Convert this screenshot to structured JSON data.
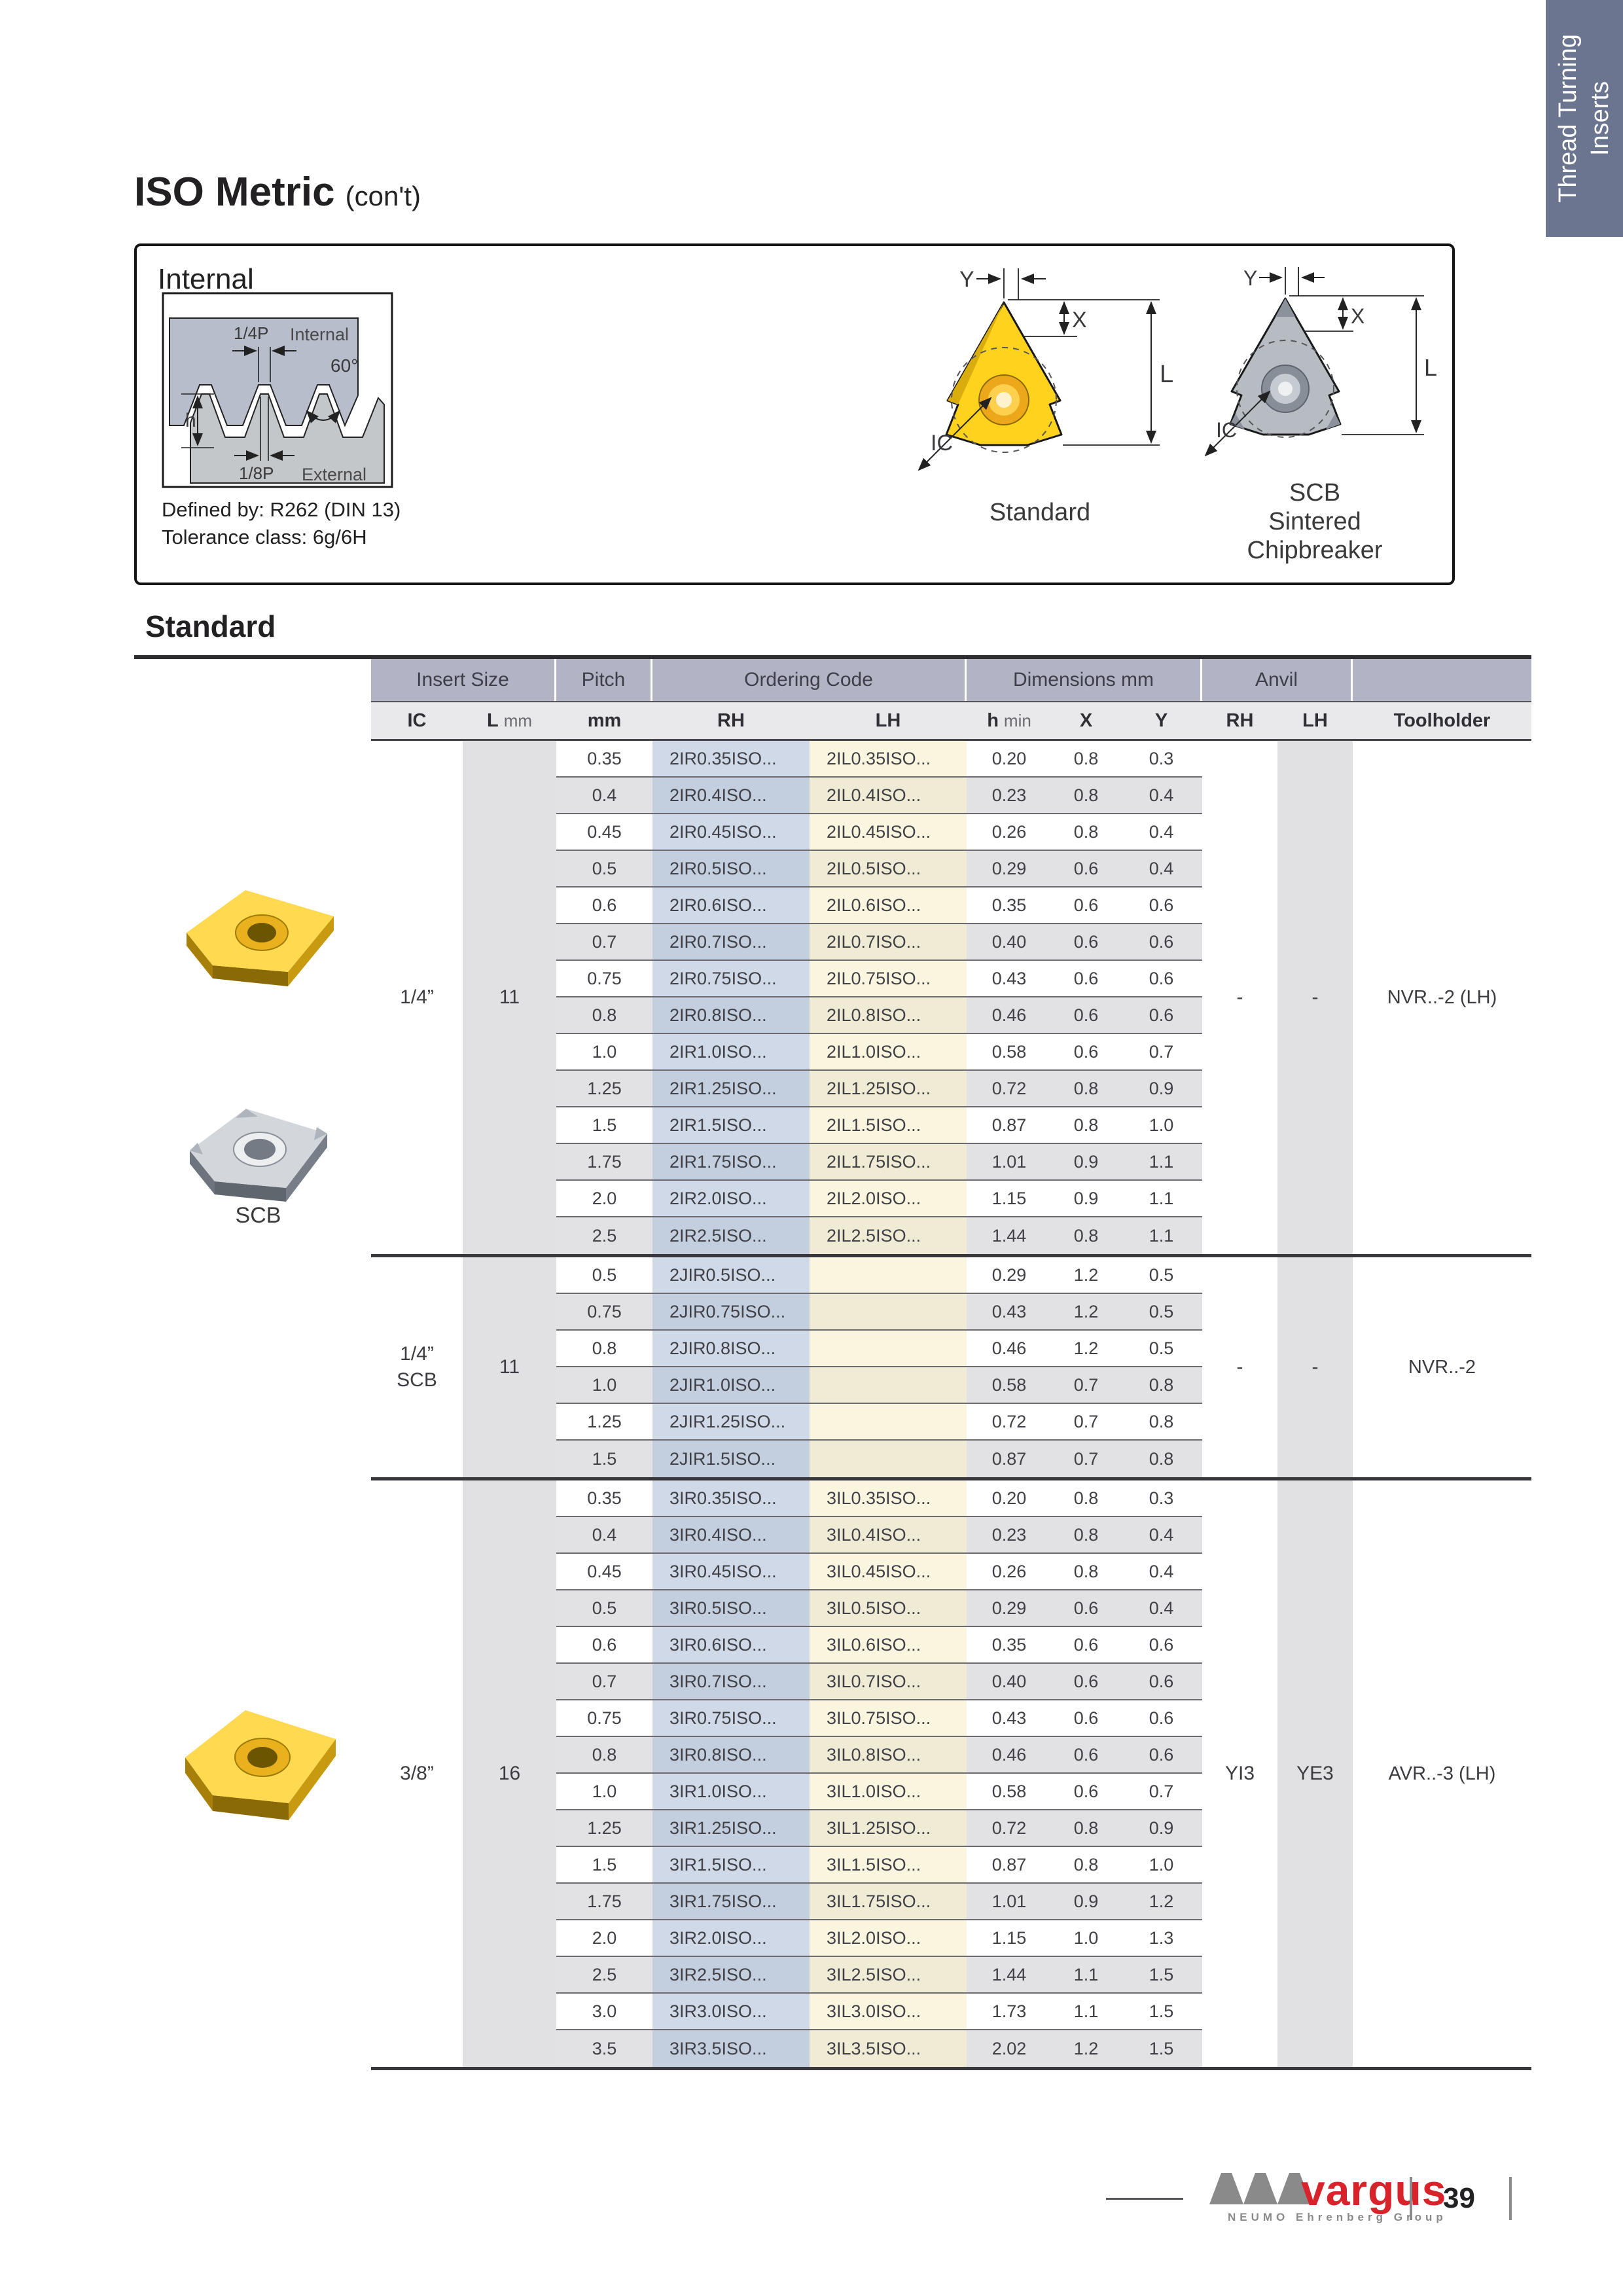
{
  "colors": {
    "tab_bg": "#6b7590",
    "table_band": "#b2b4c6",
    "subheader_bg": "#e9e9eb",
    "row_stripe": "#e2e2e5",
    "column_band": "#e1e1e4",
    "rh_code_col": "#cfd9e8",
    "lh_code_col": "#f9f5df",
    "brand_red": "#d8232a",
    "insert_yellow": "#ffd21e",
    "insert_gray": "#b7bcc3"
  },
  "page": {
    "title": "ISO Metric",
    "title_suffix": "(con't)",
    "side_tab_line1": "Thread Turning",
    "side_tab_line2": "Inserts",
    "section_heading": "Standard"
  },
  "internal_box": {
    "heading": "Internal",
    "defined_by": "Defined by: R262 (DIN 13)",
    "tolerance": "Tolerance class: 6g/6H",
    "diagram": {
      "quarter_p": "1/4P",
      "internal_label": "Internal",
      "angle": "60°",
      "h_label": "h",
      "eighth_p": "1/8P",
      "external_label": "External"
    },
    "dim_labels": {
      "y": "Y",
      "x": "X",
      "l": "L",
      "ic": "IC"
    },
    "standard_caption": "Standard",
    "scb_caption": [
      "SCB",
      "Sintered",
      "Chipbreaker"
    ],
    "scb_photo_caption": "SCB"
  },
  "table": {
    "group_header": {
      "insert_size": "Insert Size",
      "pitch": "Pitch",
      "ordering_code": "Ordering Code",
      "dimensions": "Dimensions mm",
      "anvil": "Anvil"
    },
    "sub_header": {
      "ic": "IC",
      "l": "L",
      "l_unit": "mm",
      "pitch_unit": "mm",
      "rh": "RH",
      "lh": "LH",
      "h": "h",
      "h_unit": "min",
      "x": "X",
      "y": "Y",
      "anvil_rh": "RH",
      "anvil_lh": "LH",
      "toolholder": "Toolholder"
    },
    "groups": [
      {
        "ic": "1/4”",
        "ic_sub": "",
        "l": "11",
        "anvil_rh": "-",
        "anvil_lh": "-",
        "toolholder": "NVR..-2 (LH)",
        "rows": [
          {
            "pitch": "0.35",
            "rh": "2IR0.35ISO...",
            "lh": "2IL0.35ISO...",
            "h": "0.20",
            "x": "0.8",
            "y": "0.3"
          },
          {
            "pitch": "0.4",
            "rh": "2IR0.4ISO...",
            "lh": "2IL0.4ISO...",
            "h": "0.23",
            "x": "0.8",
            "y": "0.4"
          },
          {
            "pitch": "0.45",
            "rh": "2IR0.45ISO...",
            "lh": "2IL0.45ISO...",
            "h": "0.26",
            "x": "0.8",
            "y": "0.4"
          },
          {
            "pitch": "0.5",
            "rh": "2IR0.5ISO...",
            "lh": "2IL0.5ISO...",
            "h": "0.29",
            "x": "0.6",
            "y": "0.4"
          },
          {
            "pitch": "0.6",
            "rh": "2IR0.6ISO...",
            "lh": "2IL0.6ISO...",
            "h": "0.35",
            "x": "0.6",
            "y": "0.6"
          },
          {
            "pitch": "0.7",
            "rh": "2IR0.7ISO...",
            "lh": "2IL0.7ISO...",
            "h": "0.40",
            "x": "0.6",
            "y": "0.6"
          },
          {
            "pitch": "0.75",
            "rh": "2IR0.75ISO...",
            "lh": "2IL0.75ISO...",
            "h": "0.43",
            "x": "0.6",
            "y": "0.6"
          },
          {
            "pitch": "0.8",
            "rh": "2IR0.8ISO...",
            "lh": "2IL0.8ISO...",
            "h": "0.46",
            "x": "0.6",
            "y": "0.6"
          },
          {
            "pitch": "1.0",
            "rh": "2IR1.0ISO...",
            "lh": "2IL1.0ISO...",
            "h": "0.58",
            "x": "0.6",
            "y": "0.7"
          },
          {
            "pitch": "1.25",
            "rh": "2IR1.25ISO...",
            "lh": "2IL1.25ISO...",
            "h": "0.72",
            "x": "0.8",
            "y": "0.9"
          },
          {
            "pitch": "1.5",
            "rh": "2IR1.5ISO...",
            "lh": "2IL1.5ISO...",
            "h": "0.87",
            "x": "0.8",
            "y": "1.0"
          },
          {
            "pitch": "1.75",
            "rh": "2IR1.75ISO...",
            "lh": "2IL1.75ISO...",
            "h": "1.01",
            "x": "0.9",
            "y": "1.1"
          },
          {
            "pitch": "2.0",
            "rh": "2IR2.0ISO...",
            "lh": "2IL2.0ISO...",
            "h": "1.15",
            "x": "0.9",
            "y": "1.1"
          },
          {
            "pitch": "2.5",
            "rh": "2IR2.5ISO...",
            "lh": "2IL2.5ISO...",
            "h": "1.44",
            "x": "0.8",
            "y": "1.1"
          }
        ]
      },
      {
        "ic": "1/4”",
        "ic_sub": "SCB",
        "l": "11",
        "anvil_rh": "-",
        "anvil_lh": "-",
        "toolholder": "NVR..-2",
        "rows": [
          {
            "pitch": "0.5",
            "rh": "2JIR0.5ISO...",
            "lh": "",
            "h": "0.29",
            "x": "1.2",
            "y": "0.5"
          },
          {
            "pitch": "0.75",
            "rh": "2JIR0.75ISO...",
            "lh": "",
            "h": "0.43",
            "x": "1.2",
            "y": "0.5"
          },
          {
            "pitch": "0.8",
            "rh": "2JIR0.8ISO...",
            "lh": "",
            "h": "0.46",
            "x": "1.2",
            "y": "0.5"
          },
          {
            "pitch": "1.0",
            "rh": "2JIR1.0ISO...",
            "lh": "",
            "h": "0.58",
            "x": "0.7",
            "y": "0.8"
          },
          {
            "pitch": "1.25",
            "rh": "2JIR1.25ISO...",
            "lh": "",
            "h": "0.72",
            "x": "0.7",
            "y": "0.8"
          },
          {
            "pitch": "1.5",
            "rh": "2JIR1.5ISO...",
            "lh": "",
            "h": "0.87",
            "x": "0.7",
            "y": "0.8"
          }
        ]
      },
      {
        "ic": "3/8”",
        "ic_sub": "",
        "l": "16",
        "anvil_rh": "YI3",
        "anvil_lh": "YE3",
        "toolholder": "AVR..-3 (LH)",
        "rows": [
          {
            "pitch": "0.35",
            "rh": "3IR0.35ISO...",
            "lh": "3IL0.35ISO...",
            "h": "0.20",
            "x": "0.8",
            "y": "0.3"
          },
          {
            "pitch": "0.4",
            "rh": "3IR0.4ISO...",
            "lh": "3IL0.4ISO...",
            "h": "0.23",
            "x": "0.8",
            "y": "0.4"
          },
          {
            "pitch": "0.45",
            "rh": "3IR0.45ISO...",
            "lh": "3IL0.45ISO...",
            "h": "0.26",
            "x": "0.8",
            "y": "0.4"
          },
          {
            "pitch": "0.5",
            "rh": "3IR0.5ISO...",
            "lh": "3IL0.5ISO...",
            "h": "0.29",
            "x": "0.6",
            "y": "0.4"
          },
          {
            "pitch": "0.6",
            "rh": "3IR0.6ISO...",
            "lh": "3IL0.6ISO...",
            "h": "0.35",
            "x": "0.6",
            "y": "0.6"
          },
          {
            "pitch": "0.7",
            "rh": "3IR0.7ISO...",
            "lh": "3IL0.7ISO...",
            "h": "0.40",
            "x": "0.6",
            "y": "0.6"
          },
          {
            "pitch": "0.75",
            "rh": "3IR0.75ISO...",
            "lh": "3IL0.75ISO...",
            "h": "0.43",
            "x": "0.6",
            "y": "0.6"
          },
          {
            "pitch": "0.8",
            "rh": "3IR0.8ISO...",
            "lh": "3IL0.8ISO...",
            "h": "0.46",
            "x": "0.6",
            "y": "0.6"
          },
          {
            "pitch": "1.0",
            "rh": "3IR1.0ISO...",
            "lh": "3IL1.0ISO...",
            "h": "0.58",
            "x": "0.6",
            "y": "0.7"
          },
          {
            "pitch": "1.25",
            "rh": "3IR1.25ISO...",
            "lh": "3IL1.25ISO...",
            "h": "0.72",
            "x": "0.8",
            "y": "0.9"
          },
          {
            "pitch": "1.5",
            "rh": "3IR1.5ISO...",
            "lh": "3IL1.5ISO...",
            "h": "0.87",
            "x": "0.8",
            "y": "1.0"
          },
          {
            "pitch": "1.75",
            "rh": "3IR1.75ISO...",
            "lh": "3IL1.75ISO...",
            "h": "1.01",
            "x": "0.9",
            "y": "1.2"
          },
          {
            "pitch": "2.0",
            "rh": "3IR2.0ISO...",
            "lh": "3IL2.0ISO...",
            "h": "1.15",
            "x": "1.0",
            "y": "1.3"
          },
          {
            "pitch": "2.5",
            "rh": "3IR2.5ISO...",
            "lh": "3IL2.5ISO...",
            "h": "1.44",
            "x": "1.1",
            "y": "1.5"
          },
          {
            "pitch": "3.0",
            "rh": "3IR3.0ISO...",
            "lh": "3IL3.0ISO...",
            "h": "1.73",
            "x": "1.1",
            "y": "1.5"
          },
          {
            "pitch": "3.5",
            "rh": "3IR3.5ISO...",
            "lh": "3IL3.5ISO...",
            "h": "2.02",
            "x": "1.2",
            "y": "1.5"
          }
        ]
      }
    ]
  },
  "footer": {
    "brand": "vargus",
    "brand_sub": "NEUMO Ehrenberg Group",
    "page_number": "39"
  }
}
